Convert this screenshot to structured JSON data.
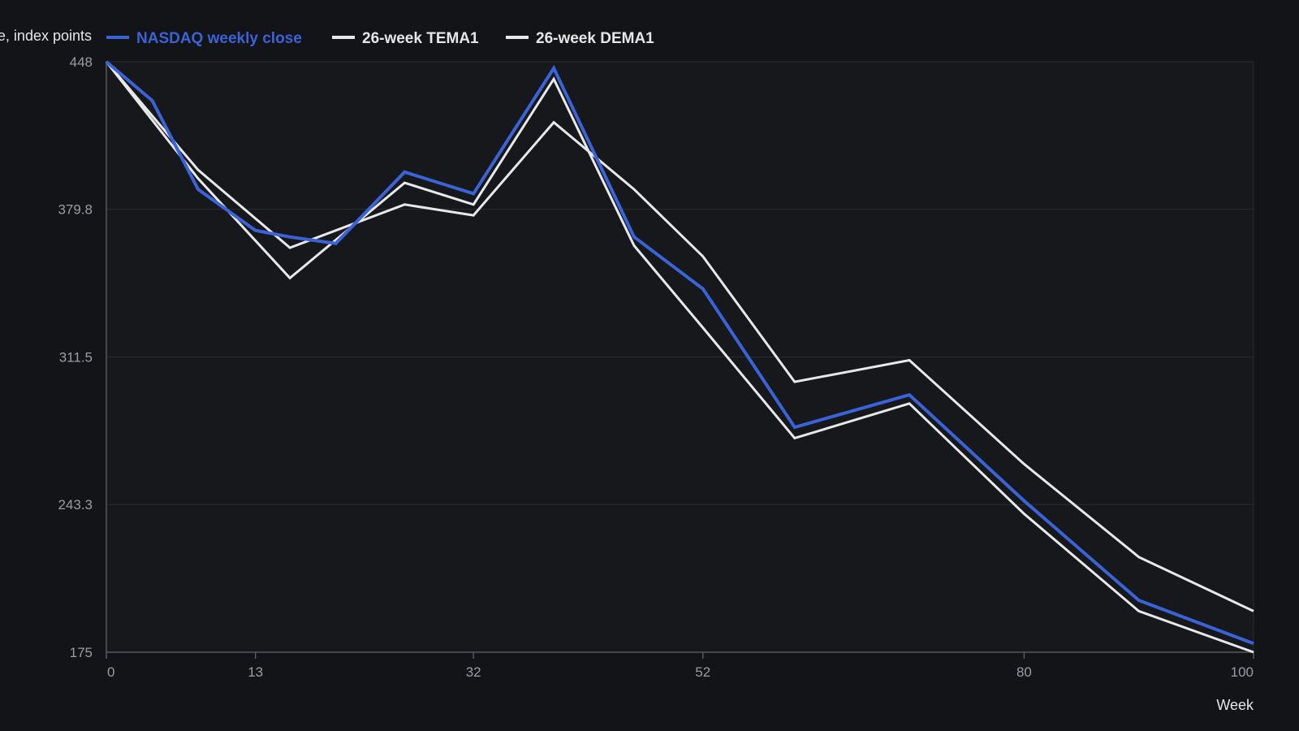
{
  "chart_data": {
    "type": "line",
    "ylabel": "e, index points",
    "xlabel": "Week",
    "xlim": [
      0,
      100
    ],
    "ylim": [
      175,
      448
    ],
    "x_ticks": [
      0,
      13,
      32,
      52,
      80,
      100
    ],
    "y_ticks": [
      175,
      243.3,
      311.5,
      379.8,
      448
    ],
    "grid": true,
    "legend": "top-left",
    "series": [
      {
        "name": "NASDAQ weekly close",
        "color": "#3a63d8",
        "x": [
          0,
          4,
          8,
          13,
          16,
          20,
          26,
          32,
          39,
          46,
          52,
          60,
          70,
          80,
          90,
          100
        ],
        "y": [
          448,
          430,
          389,
          370,
          367,
          364,
          397,
          387,
          445,
          367,
          343,
          279,
          294,
          245,
          199,
          179
        ]
      },
      {
        "name": "26-week TEMA1",
        "color": "#e8e8e8",
        "x": [
          0,
          8,
          16,
          26,
          32,
          39,
          46,
          52,
          60,
          70,
          80,
          90,
          100
        ],
        "y": [
          448,
          398,
          362,
          382,
          377,
          420,
          389,
          358,
          300,
          310,
          262,
          219,
          194
        ]
      },
      {
        "name": "26-week DEMA1",
        "color": "#e8e8e8",
        "x": [
          0,
          8,
          16,
          26,
          32,
          39,
          46,
          52,
          60,
          70,
          80,
          90,
          100
        ],
        "y": [
          448,
          394,
          348,
          392,
          382,
          440,
          363,
          325,
          274,
          290,
          239,
          194,
          175
        ]
      }
    ]
  }
}
